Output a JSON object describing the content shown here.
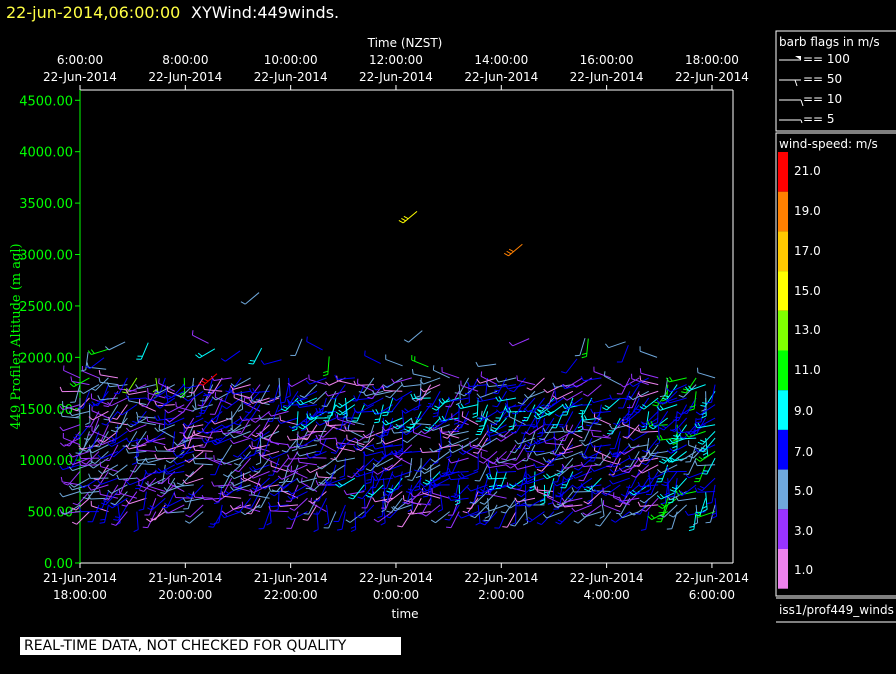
{
  "header": {
    "datetime": "22-jun-2014,06:00:00",
    "title": "XYWind:449winds."
  },
  "notice": "REAL-TIME DATA, NOT CHECKED FOR QUALITY",
  "legend_flags": {
    "title": "barb flags in m/s",
    "items": [
      "== 100",
      "== 50",
      "== 10",
      "== 5"
    ]
  },
  "colorbar": {
    "title": "wind-speed: m/s",
    "labels": [
      "21.0",
      "19.0",
      "17.0",
      "15.0",
      "13.0",
      "11.0",
      "9.0",
      "7.0",
      "5.0",
      "3.0",
      "1.0"
    ],
    "colors": [
      "#ff0000",
      "#ff8000",
      "#ffc800",
      "#ffff00",
      "#80ff00",
      "#00ff00",
      "#00ffff",
      "#0000ff",
      "#6fa8dc",
      "#9933ff",
      "#ee82ee"
    ]
  },
  "footer_id": "iss1/prof449_winds",
  "colors": {
    "axis": "#00ff00",
    "frame": "#ffffff",
    "background": "#000000",
    "header_date": "#ffff44"
  },
  "chart_data": {
    "type": "scatter",
    "title": "",
    "ylabel": "449 Profiler Altitude (m agl)",
    "xlabel": "time",
    "top_xlabel": "Time (NZST)",
    "ylim": [
      0,
      4600
    ],
    "yticks": [
      "0.00",
      "500.00",
      "1000.00",
      "1500.00",
      "2000.00",
      "2500.00",
      "3000.00",
      "3500.00",
      "4000.00",
      "4500.00"
    ],
    "bottom_ticks": [
      {
        "date": "21-Jun-2014",
        "time": "18:00:00"
      },
      {
        "date": "21-Jun-2014",
        "time": "20:00:00"
      },
      {
        "date": "21-Jun-2014",
        "time": "22:00:00"
      },
      {
        "date": "22-Jun-2014",
        "time": "0:00:00"
      },
      {
        "date": "22-Jun-2014",
        "time": "2:00:00"
      },
      {
        "date": "22-Jun-2014",
        "time": "4:00:00"
      },
      {
        "date": "22-Jun-2014",
        "time": "6:00:00"
      }
    ],
    "top_ticks": [
      {
        "time": "6:00:00",
        "date": "22-Jun-2014"
      },
      {
        "time": "8:00:00",
        "date": "22-Jun-2014"
      },
      {
        "time": "10:00:00",
        "date": "22-Jun-2014"
      },
      {
        "time": "12:00:00",
        "date": "22-Jun-2014"
      },
      {
        "time": "14:00:00",
        "date": "22-Jun-2014"
      },
      {
        "time": "16:00:00",
        "date": "22-Jun-2014"
      },
      {
        "time": "18:00:00",
        "date": "22-Jun-2014"
      }
    ],
    "x_range_hours": [
      0,
      12.4
    ],
    "wind_barbs": {
      "description_of_data": "wind barbs on an altitude grid",
      "altitude_range_m": [
        500,
        1850
      ],
      "speed_range_ms": [
        1,
        21
      ]
    },
    "isolated_barbs": [
      {
        "hour": 6.4,
        "alt": 3420,
        "speed": 15
      },
      {
        "hour": 8.4,
        "alt": 3100,
        "speed": 19
      },
      {
        "hour": 3.4,
        "alt": 2630,
        "speed": 5
      },
      {
        "hour": 6.5,
        "alt": 2260,
        "speed": 5
      },
      {
        "hour": 2.6,
        "alt": 1840,
        "speed": 21
      }
    ]
  }
}
